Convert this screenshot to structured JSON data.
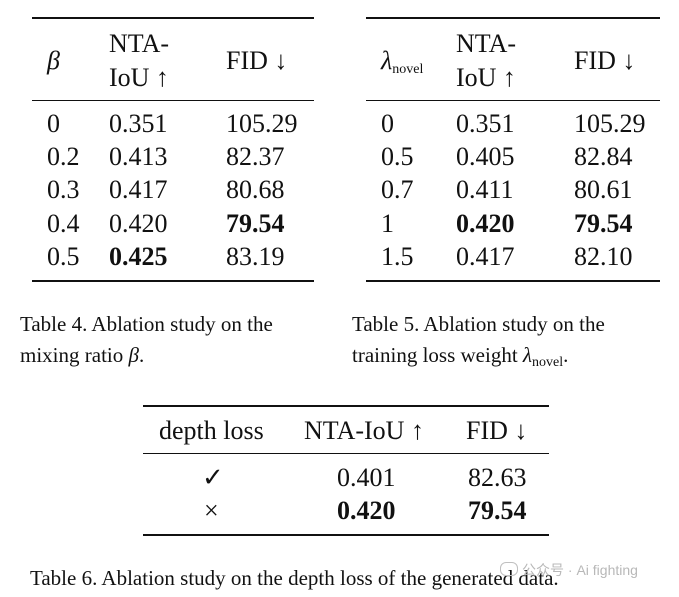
{
  "table4": {
    "headers": {
      "beta": "β",
      "nta_line1": "NTA-",
      "nta_line2": "IoU ↑",
      "fid": "FID ↓"
    },
    "rows": [
      {
        "beta": "0",
        "nta": "0.351",
        "fid": "105.29"
      },
      {
        "beta": "0.2",
        "nta": "0.413",
        "fid": "82.37"
      },
      {
        "beta": "0.3",
        "nta": "0.417",
        "fid": "80.68"
      },
      {
        "beta": "0.4",
        "nta": "0.420",
        "fid": "79.54"
      },
      {
        "beta": "0.5",
        "nta": "0.425",
        "fid": "83.19"
      }
    ],
    "caption_line1": "Table 4. Ablation study on the",
    "caption_line2": "mixing ratio ",
    "caption_symbol": "β",
    "caption_end": "."
  },
  "table5": {
    "headers": {
      "lambda": "λ",
      "lambda_sub": "novel",
      "nta_line1": "NTA-",
      "nta_line2": "IoU ↑",
      "fid": "FID ↓"
    },
    "rows": [
      {
        "lambda": "0",
        "nta": "0.351",
        "fid": "105.29"
      },
      {
        "lambda": "0.5",
        "nta": "0.405",
        "fid": "82.84"
      },
      {
        "lambda": "0.7",
        "nta": "0.411",
        "fid": "80.61"
      },
      {
        "lambda": "1",
        "nta": "0.420",
        "fid": "79.54"
      },
      {
        "lambda": "1.5",
        "nta": "0.417",
        "fid": "82.10"
      }
    ],
    "caption_line1": "Table 5.  Ablation study on the",
    "caption_line2": "training loss weight ",
    "caption_symbol": "λ",
    "caption_sub": "novel",
    "caption_end": "."
  },
  "table6": {
    "headers": {
      "depth": "depth loss",
      "nta": "NTA-IoU ↑",
      "fid": "FID ↓"
    },
    "rows": [
      {
        "depth": "✓",
        "nta": "0.401",
        "fid": "82.63"
      },
      {
        "depth": "×",
        "nta": "0.420",
        "fid": "79.54"
      }
    ],
    "caption": "Table 6. Ablation study on the depth loss of the generated data."
  },
  "watermark": "公众号 · Ai fighting"
}
